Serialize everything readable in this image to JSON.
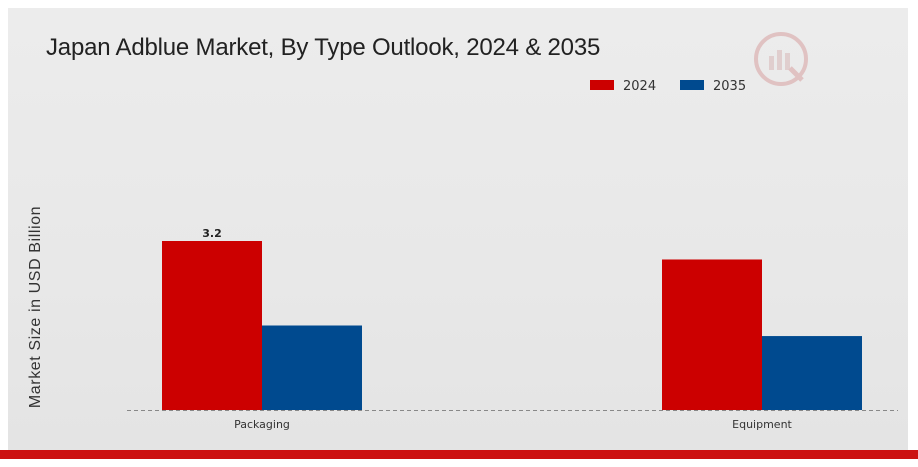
{
  "title": "Japan Adblue Market, By Type Outlook, 2024 & 2035",
  "colors": {
    "s2024": "#cc0000",
    "s2035": "#004a8f",
    "baseline": "#888888",
    "accent_bar": "#cc1111"
  },
  "chart_data": {
    "type": "bar",
    "title": "Japan Adblue Market, By Type Outlook, 2024 & 2035",
    "xlabel": "",
    "ylabel": "Market Size in USD Billion",
    "categories": [
      "Packaging",
      "Equipment"
    ],
    "series": [
      {
        "name": "2024",
        "values": [
          3.2,
          2.85
        ],
        "color": "#cc0000"
      },
      {
        "name": "2035",
        "values": [
          1.6,
          1.4
        ],
        "color": "#004a8f"
      }
    ],
    "data_labels": [
      {
        "series": "2024",
        "category": "Packaging",
        "text": "3.2"
      }
    ],
    "ylim": [
      0,
      3.2
    ],
    "grid": false,
    "legend_position": "top-right"
  },
  "logo": {
    "icon": "market-research-logo-icon"
  }
}
